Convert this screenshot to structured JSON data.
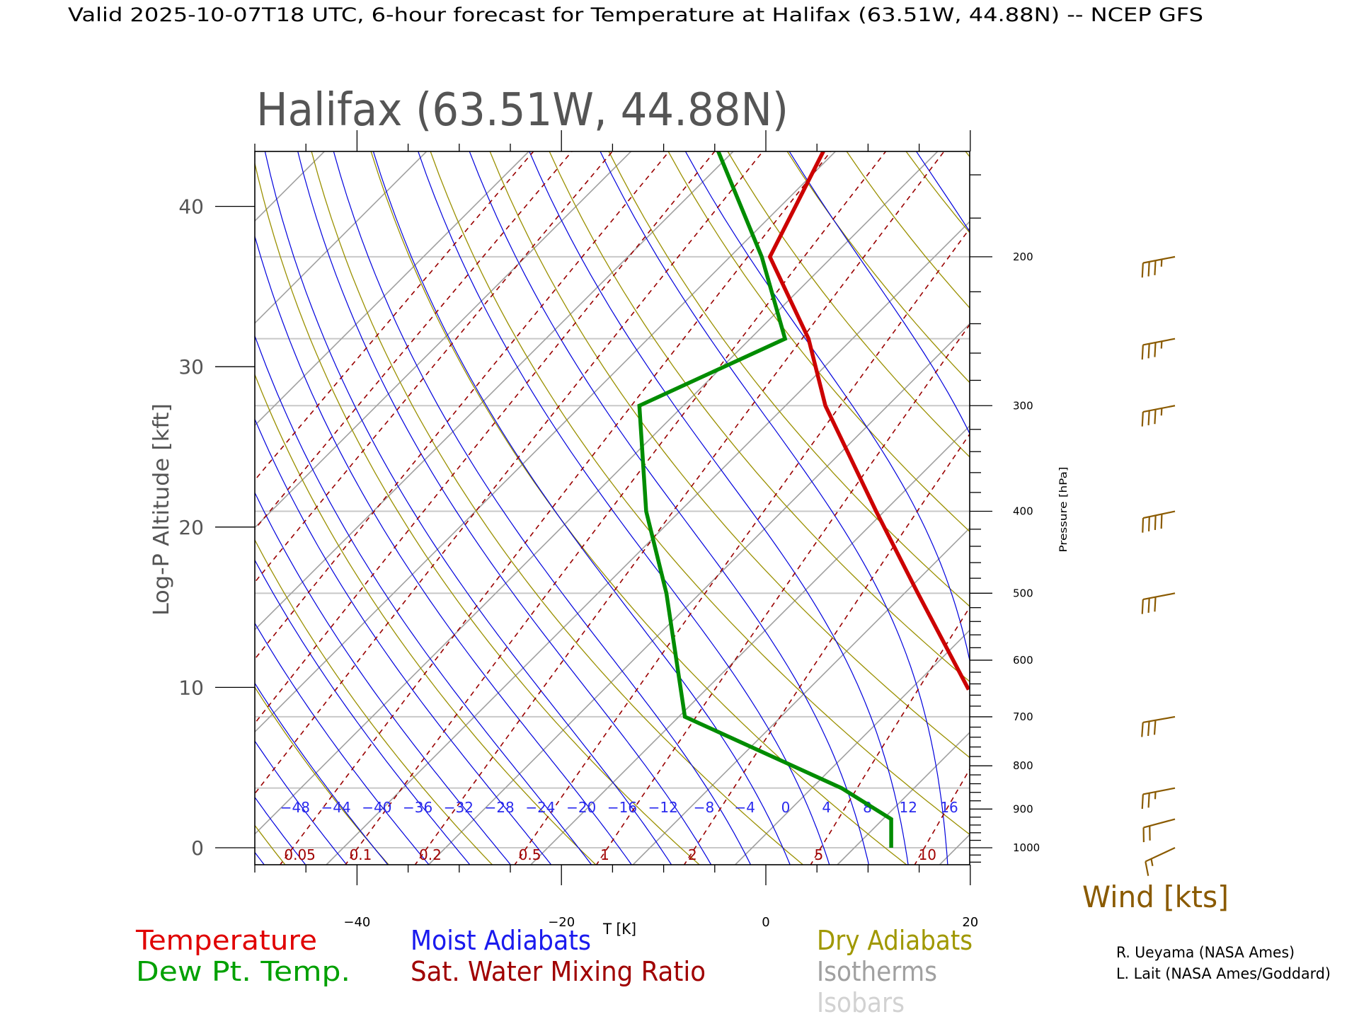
{
  "header": {
    "title": "Valid 2025-10-07T18 UTC, 6-hour forecast for Temperature at Halifax (63.51W, 44.88N) -- NCEP GFS"
  },
  "chart_data": {
    "type": "line",
    "subtype": "skew-T log-P diagram",
    "title": "Halifax (63.51W, 44.88N)",
    "xlabel": "T [K]",
    "ylabel_left": "Log-P Altitude [kft]",
    "ylabel_right": "Pressure [hPa]",
    "xlim": [
      -50,
      20
    ],
    "x_ticks": [
      "-40",
      "-20",
      "0",
      "20"
    ],
    "x_tick_values": [
      -40,
      -20,
      0,
      20
    ],
    "altitude_ticks": [
      "0",
      "10",
      "20",
      "30",
      "40"
    ],
    "altitude_tick_values": [
      0,
      10,
      20,
      30,
      40
    ],
    "pressure_labels": [
      "1000",
      "900",
      "800",
      "700",
      "600",
      "500",
      "400",
      "300",
      "200"
    ],
    "pressure_label_values": [
      1000,
      900,
      800,
      700,
      600,
      500,
      400,
      300,
      200
    ],
    "pressure_range_hpa": [
      1047,
      150
    ],
    "grid": true,
    "series": [
      {
        "name": "Temperature",
        "color": "#cc0000",
        "points": [
          [
            150,
            -64.2
          ],
          [
            200,
            -59.1
          ],
          [
            250,
            -47.3
          ],
          [
            300,
            -39.1
          ],
          [
            400,
            -23.8
          ],
          [
            500,
            -11.7
          ],
          [
            650,
            2.7
          ]
        ]
      },
      {
        "name": "Dew Pt. Temp.",
        "color": "#008c00",
        "points": [
          [
            150,
            -74.5
          ],
          [
            200,
            -59.9
          ],
          [
            250,
            -49.6
          ],
          [
            300,
            -57.3
          ],
          [
            400,
            -46.3
          ],
          [
            475,
            -38.6
          ],
          [
            500,
            -36.3
          ],
          [
            700,
            -22.4
          ],
          [
            850,
            -0.1
          ],
          [
            925,
            7.8
          ],
          [
            1000,
            10.6
          ]
        ]
      }
    ],
    "moist_adiabat_labels": [
      "-48",
      "-44",
      "-40",
      "-36",
      "-32",
      "-28",
      "-24",
      "-20",
      "-16",
      "-12",
      "-8",
      "-4",
      "0",
      "4",
      "8",
      "12",
      "16"
    ],
    "moist_adiabat_values": [
      -48,
      -44,
      -40,
      -36,
      -32,
      -28,
      -24,
      -20,
      -16,
      -12,
      -8,
      -4,
      0,
      4,
      8,
      12,
      16
    ],
    "mixing_ratio_labels": [
      "0.05",
      "0.1",
      "0.2",
      "0.5",
      "1",
      "2",
      "5",
      "10"
    ],
    "mixing_ratio_values": [
      0.05,
      0.1,
      0.2,
      0.5,
      1,
      2,
      5,
      10
    ],
    "wind": {
      "label": "Wind [kts]",
      "barbs": [
        {
          "p": 200,
          "speed_kts": 35,
          "dir_deg": 259
        },
        {
          "p": 250,
          "speed_kts": 35,
          "dir_deg": 259
        },
        {
          "p": 300,
          "speed_kts": 35,
          "dir_deg": 259
        },
        {
          "p": 400,
          "speed_kts": 40,
          "dir_deg": 258
        },
        {
          "p": 500,
          "speed_kts": 30,
          "dir_deg": 259
        },
        {
          "p": 700,
          "speed_kts": 30,
          "dir_deg": 260
        },
        {
          "p": 850,
          "speed_kts": 25,
          "dir_deg": 259
        },
        {
          "p": 925,
          "speed_kts": 20,
          "dir_deg": 255
        },
        {
          "p": 1000,
          "speed_kts": 15,
          "dir_deg": 245
        }
      ]
    },
    "legend": [
      {
        "label": "Temperature",
        "color": "#e00000"
      },
      {
        "label": "Dew Pt. Temp.",
        "color": "#00a000"
      },
      {
        "label": "Moist Adiabats",
        "color": "#1a1aee"
      },
      {
        "label": "Sat. Water Mixing Ratio",
        "color": "#a00000"
      },
      {
        "label": "Dry Adiabats",
        "color": "#a09800"
      },
      {
        "label": "Isotherms",
        "color": "#a0a0a0"
      },
      {
        "label": "Isobars",
        "color": "#d2d2d2"
      }
    ]
  },
  "credits": [
    "R. Ueyama (NASA Ames)",
    "L. Lait (NASA Ames/Goddard)"
  ],
  "colors": {
    "isotherm": "#a0a0a0",
    "isobar": "#c8c8c8",
    "dry": "#9a9000",
    "moist": "#0000dd",
    "mixing": "#990000",
    "wind": "#8a5a00"
  }
}
